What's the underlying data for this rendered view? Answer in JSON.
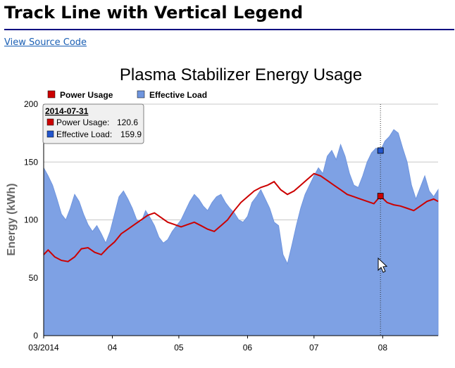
{
  "page": {
    "title": "Track Line with Vertical Legend",
    "source_link": "View Source Code"
  },
  "colors": {
    "power": "#cc0000",
    "load_fill": "#7ea1e4",
    "load_line": "#6f95de",
    "tracker": "#333333",
    "rule": "#000080"
  },
  "chart_data": {
    "type": "area",
    "title": "Plasma Stabilizer Energy Usage",
    "ylabel": "Energy (kWh)",
    "xlabel": "",
    "ylim": [
      0,
      200
    ],
    "yticks": [
      0,
      50,
      100,
      150,
      200
    ],
    "xlim": [
      "2014-03-01",
      "2014-08-26"
    ],
    "xticks": [
      {
        "date": "2014-03-01",
        "label": "03/2014"
      },
      {
        "date": "2014-04-01",
        "label": "04"
      },
      {
        "date": "2014-05-01",
        "label": "05"
      },
      {
        "date": "2014-06-01",
        "label": "06"
      },
      {
        "date": "2014-07-01",
        "label": "07"
      },
      {
        "date": "2014-08-01",
        "label": "08"
      }
    ],
    "grid": true,
    "legend": {
      "placement": "top",
      "orientation": "horizontal"
    },
    "series": [
      {
        "name": "Power Usage",
        "kind": "line",
        "points": [
          [
            "2014-03-01",
            70
          ],
          [
            "2014-03-03",
            74
          ],
          [
            "2014-03-06",
            68
          ],
          [
            "2014-03-09",
            65
          ],
          [
            "2014-03-12",
            64
          ],
          [
            "2014-03-15",
            68
          ],
          [
            "2014-03-18",
            75
          ],
          [
            "2014-03-21",
            76
          ],
          [
            "2014-03-24",
            72
          ],
          [
            "2014-03-27",
            70
          ],
          [
            "2014-03-30",
            76
          ],
          [
            "2014-04-02",
            81
          ],
          [
            "2014-04-05",
            88
          ],
          [
            "2014-04-08",
            92
          ],
          [
            "2014-04-11",
            96
          ],
          [
            "2014-04-14",
            100
          ],
          [
            "2014-04-17",
            104
          ],
          [
            "2014-04-20",
            106
          ],
          [
            "2014-04-23",
            102
          ],
          [
            "2014-04-26",
            98
          ],
          [
            "2014-04-29",
            96
          ],
          [
            "2014-05-02",
            94
          ],
          [
            "2014-05-05",
            96
          ],
          [
            "2014-05-08",
            98
          ],
          [
            "2014-05-11",
            95
          ],
          [
            "2014-05-14",
            92
          ],
          [
            "2014-05-17",
            90
          ],
          [
            "2014-05-20",
            95
          ],
          [
            "2014-05-23",
            100
          ],
          [
            "2014-05-26",
            108
          ],
          [
            "2014-05-29",
            115
          ],
          [
            "2014-06-01",
            120
          ],
          [
            "2014-06-04",
            125
          ],
          [
            "2014-06-07",
            128
          ],
          [
            "2014-06-10",
            130
          ],
          [
            "2014-06-13",
            133
          ],
          [
            "2014-06-16",
            126
          ],
          [
            "2014-06-19",
            122
          ],
          [
            "2014-06-22",
            125
          ],
          [
            "2014-06-25",
            130
          ],
          [
            "2014-06-28",
            135
          ],
          [
            "2014-07-01",
            140
          ],
          [
            "2014-07-04",
            138
          ],
          [
            "2014-07-07",
            134
          ],
          [
            "2014-07-10",
            130
          ],
          [
            "2014-07-13",
            126
          ],
          [
            "2014-07-16",
            122
          ],
          [
            "2014-07-19",
            120
          ],
          [
            "2014-07-22",
            118
          ],
          [
            "2014-07-25",
            116
          ],
          [
            "2014-07-28",
            114
          ],
          [
            "2014-07-31",
            120.6
          ],
          [
            "2014-08-03",
            115
          ],
          [
            "2014-08-06",
            113
          ],
          [
            "2014-08-09",
            112
          ],
          [
            "2014-08-12",
            110
          ],
          [
            "2014-08-15",
            108
          ],
          [
            "2014-08-18",
            112
          ],
          [
            "2014-08-21",
            116
          ],
          [
            "2014-08-24",
            118
          ],
          [
            "2014-08-26",
            116
          ]
        ]
      },
      {
        "name": "Effective Load",
        "kind": "area",
        "points": [
          [
            "2014-03-01",
            145
          ],
          [
            "2014-03-03",
            138
          ],
          [
            "2014-03-05",
            130
          ],
          [
            "2014-03-07",
            118
          ],
          [
            "2014-03-09",
            105
          ],
          [
            "2014-03-11",
            100
          ],
          [
            "2014-03-13",
            110
          ],
          [
            "2014-03-15",
            122
          ],
          [
            "2014-03-17",
            116
          ],
          [
            "2014-03-19",
            105
          ],
          [
            "2014-03-21",
            96
          ],
          [
            "2014-03-23",
            90
          ],
          [
            "2014-03-25",
            95
          ],
          [
            "2014-03-27",
            88
          ],
          [
            "2014-03-29",
            80
          ],
          [
            "2014-03-31",
            90
          ],
          [
            "2014-04-02",
            105
          ],
          [
            "2014-04-04",
            120
          ],
          [
            "2014-04-06",
            125
          ],
          [
            "2014-04-08",
            118
          ],
          [
            "2014-04-10",
            110
          ],
          [
            "2014-04-12",
            100
          ],
          [
            "2014-04-14",
            98
          ],
          [
            "2014-04-16",
            108
          ],
          [
            "2014-04-18",
            102
          ],
          [
            "2014-04-20",
            95
          ],
          [
            "2014-04-22",
            85
          ],
          [
            "2014-04-24",
            80
          ],
          [
            "2014-04-26",
            83
          ],
          [
            "2014-04-28",
            90
          ],
          [
            "2014-04-30",
            95
          ],
          [
            "2014-05-02",
            100
          ],
          [
            "2014-05-04",
            108
          ],
          [
            "2014-05-06",
            116
          ],
          [
            "2014-05-08",
            122
          ],
          [
            "2014-05-10",
            118
          ],
          [
            "2014-05-12",
            112
          ],
          [
            "2014-05-14",
            108
          ],
          [
            "2014-05-16",
            115
          ],
          [
            "2014-05-18",
            120
          ],
          [
            "2014-05-20",
            122
          ],
          [
            "2014-05-22",
            115
          ],
          [
            "2014-05-24",
            110
          ],
          [
            "2014-05-26",
            106
          ],
          [
            "2014-05-28",
            100
          ],
          [
            "2014-05-30",
            98
          ],
          [
            "2014-06-01",
            103
          ],
          [
            "2014-06-03",
            115
          ],
          [
            "2014-06-05",
            120
          ],
          [
            "2014-06-07",
            126
          ],
          [
            "2014-06-09",
            118
          ],
          [
            "2014-06-11",
            110
          ],
          [
            "2014-06-13",
            98
          ],
          [
            "2014-06-15",
            95
          ],
          [
            "2014-06-17",
            70
          ],
          [
            "2014-06-19",
            62
          ],
          [
            "2014-06-21",
            78
          ],
          [
            "2014-06-23",
            95
          ],
          [
            "2014-06-25",
            110
          ],
          [
            "2014-06-27",
            122
          ],
          [
            "2014-06-29",
            130
          ],
          [
            "2014-07-01",
            138
          ],
          [
            "2014-07-03",
            145
          ],
          [
            "2014-07-05",
            140
          ],
          [
            "2014-07-07",
            155
          ],
          [
            "2014-07-09",
            160
          ],
          [
            "2014-07-11",
            152
          ],
          [
            "2014-07-13",
            165
          ],
          [
            "2014-07-15",
            155
          ],
          [
            "2014-07-17",
            140
          ],
          [
            "2014-07-19",
            130
          ],
          [
            "2014-07-21",
            128
          ],
          [
            "2014-07-23",
            138
          ],
          [
            "2014-07-25",
            150
          ],
          [
            "2014-07-27",
            158
          ],
          [
            "2014-07-29",
            162
          ],
          [
            "2014-07-31",
            159.9
          ],
          [
            "2014-08-02",
            168
          ],
          [
            "2014-08-04",
            172
          ],
          [
            "2014-08-06",
            178
          ],
          [
            "2014-08-08",
            175
          ],
          [
            "2014-08-10",
            162
          ],
          [
            "2014-08-12",
            150
          ],
          [
            "2014-08-14",
            130
          ],
          [
            "2014-08-16",
            118
          ],
          [
            "2014-08-18",
            128
          ],
          [
            "2014-08-20",
            138
          ],
          [
            "2014-08-22",
            125
          ],
          [
            "2014-08-24",
            120
          ],
          [
            "2014-08-26",
            126
          ]
        ]
      }
    ],
    "tracker": {
      "date": "2014-07-31",
      "rows": [
        {
          "series": "Power Usage",
          "label": "Power Usage:",
          "value": "120.6",
          "y": 120.6
        },
        {
          "series": "Effective Load",
          "label": "Effective Load:",
          "value": "159.9",
          "y": 159.9
        }
      ]
    }
  }
}
